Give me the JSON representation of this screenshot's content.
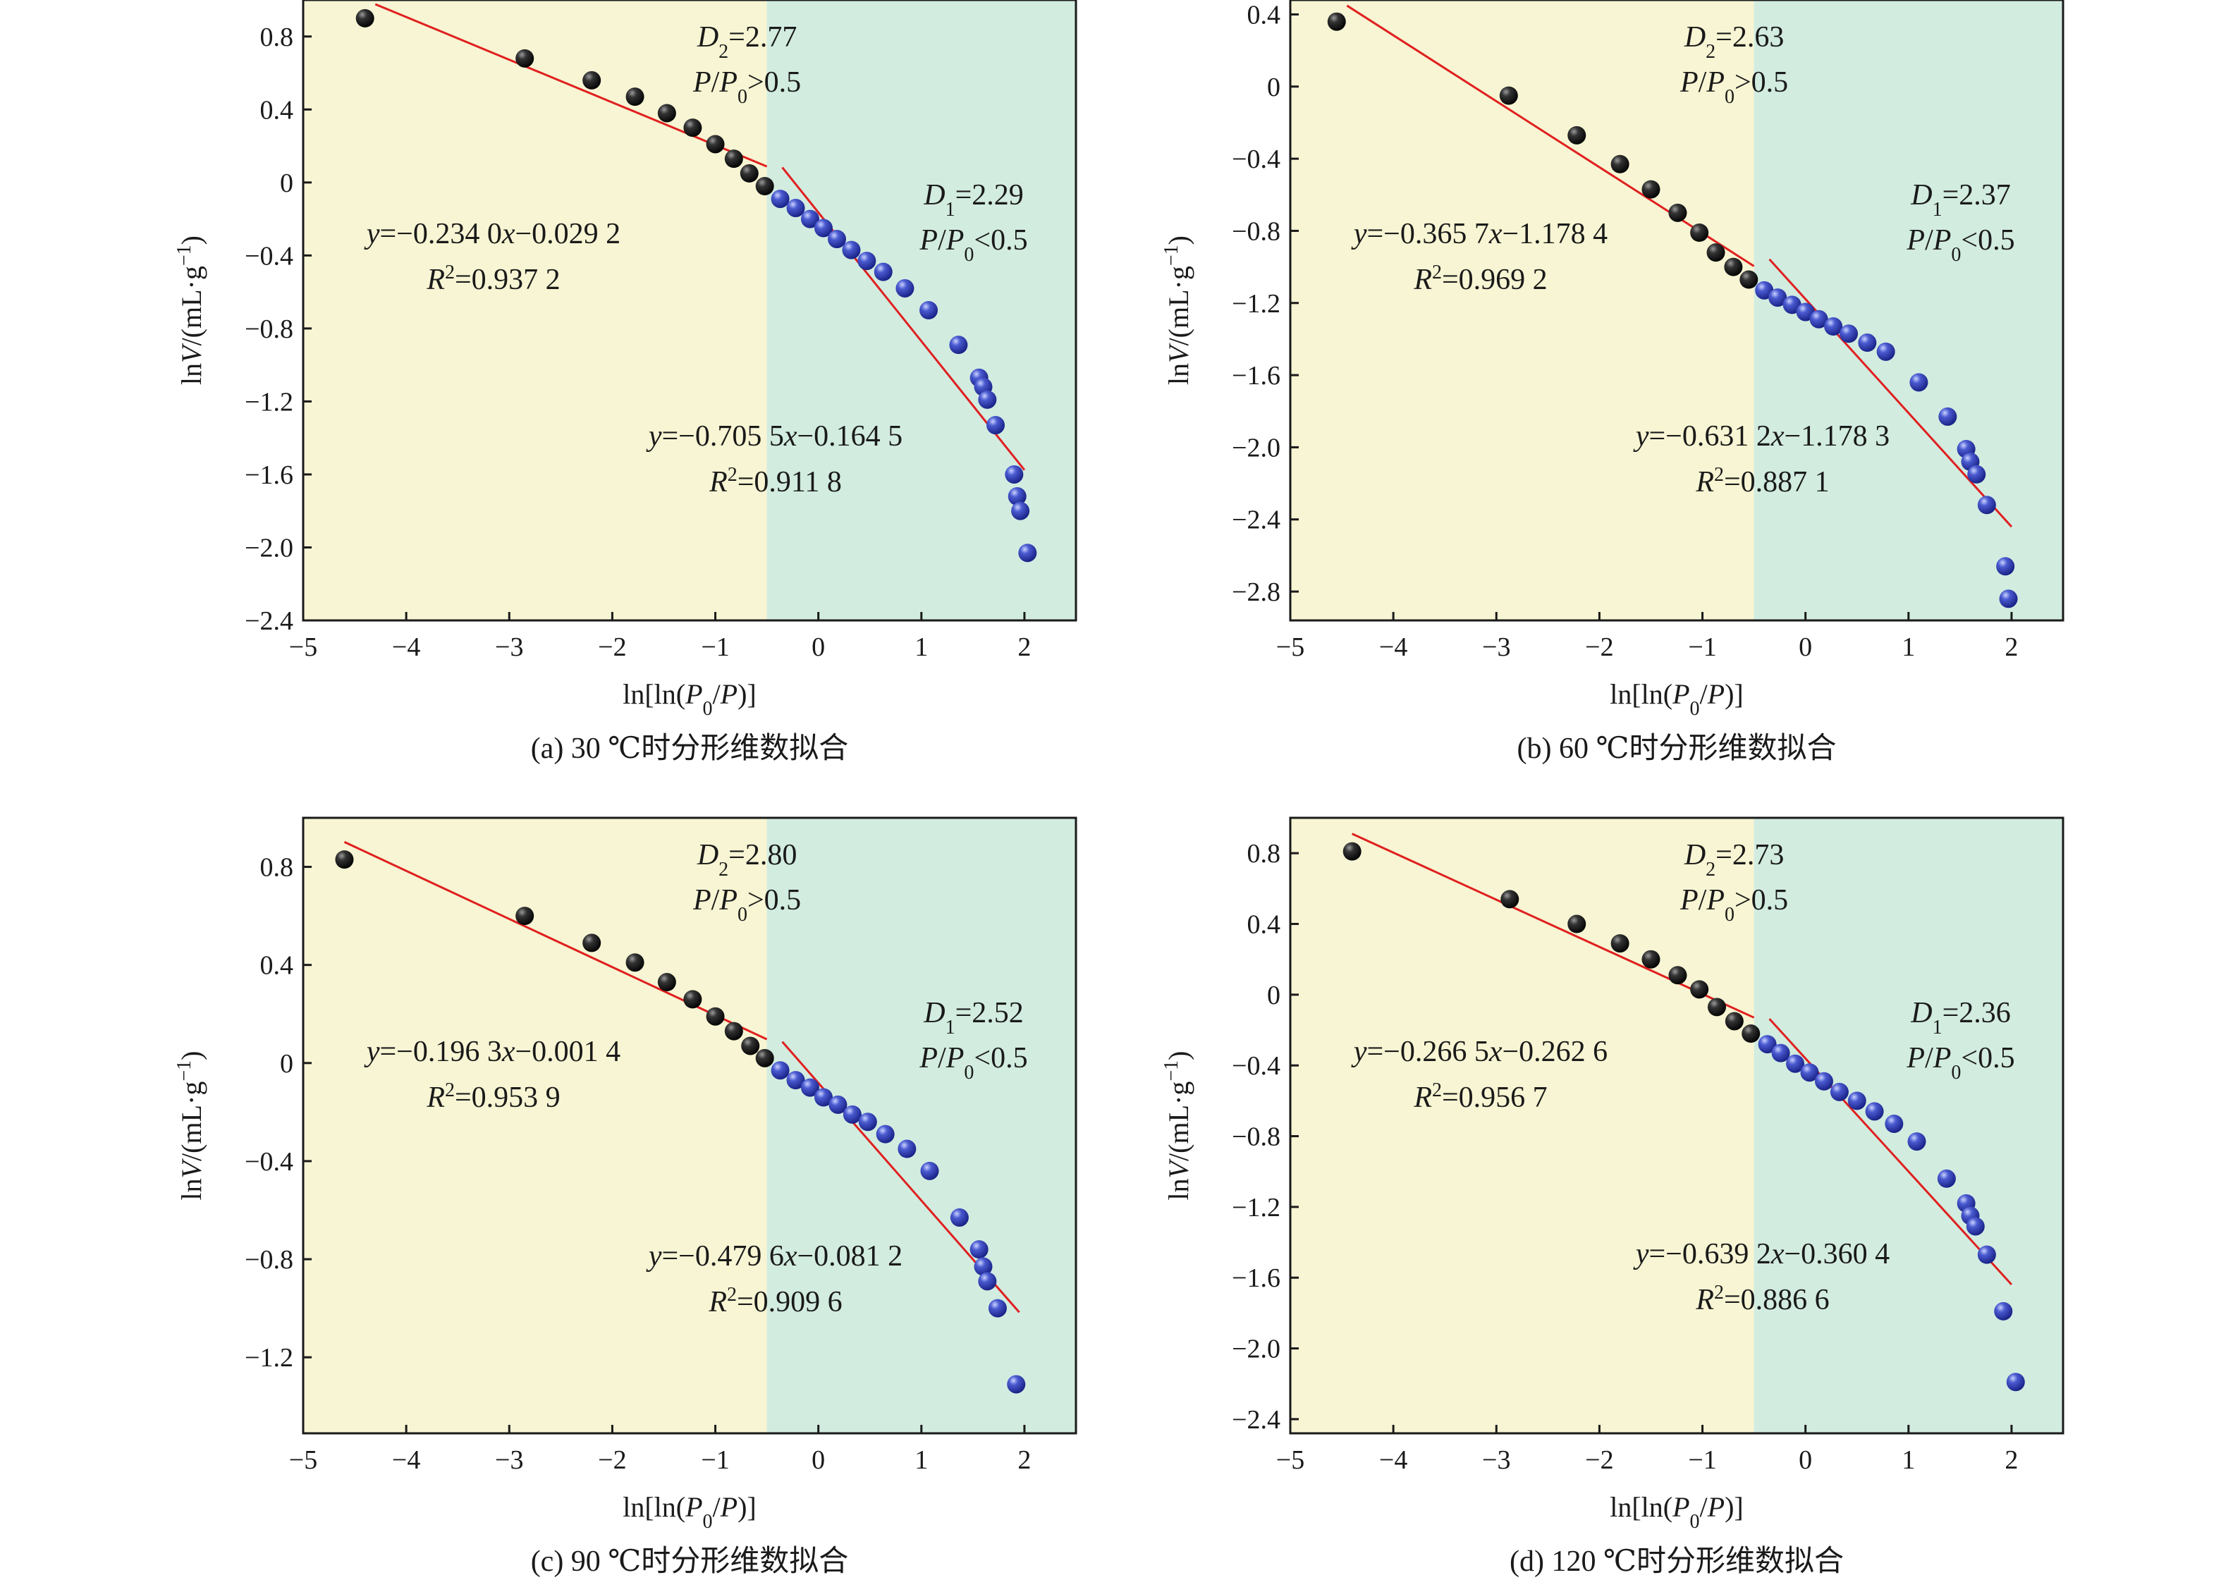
{
  "chart_data": [
    {
      "type": "scatter",
      "panel": "a",
      "caption": "(a) 30 ℃时分形维数拟合",
      "xlabel": "ln[ln(P0/P)]",
      "ylabel": "lnV/(mL·g−1)",
      "xlim": [
        -5,
        2.5
      ],
      "ylim": [
        -2.4,
        1.0
      ],
      "xticks": [
        -5,
        -4,
        -3,
        -2,
        -1,
        0,
        1,
        2
      ],
      "yticks": [
        0.8,
        0.4,
        0,
        -0.4,
        -0.8,
        -1.2,
        -1.6,
        -2.0,
        -2.4
      ],
      "xtick_labels": [
        "−5",
        "−4",
        "−3",
        "−2",
        "−1",
        "0",
        "1",
        "2"
      ],
      "ytick_labels": [
        "0.8",
        "0.4",
        "0",
        "−0.4",
        "−0.8",
        "−1.2",
        "−1.6",
        "−2.0",
        "−2.4"
      ],
      "boundary_x": -0.5,
      "region_colors": {
        "left": "#f7f5d3",
        "right": "#d2ece0"
      },
      "series": [
        {
          "region": "P/P0>0.5",
          "color": "#1c1c1c",
          "x": [
            -4.4,
            -2.85,
            -2.2,
            -1.78,
            -1.47,
            -1.22,
            -1.0,
            -0.82,
            -0.67,
            -0.52
          ],
          "y": [
            0.9,
            0.68,
            0.56,
            0.47,
            0.38,
            0.3,
            0.21,
            0.13,
            0.05,
            -0.02
          ]
        },
        {
          "region": "P/P0<0.5",
          "color": "#3a48b8",
          "x": [
            -0.37,
            -0.22,
            -0.08,
            0.05,
            0.18,
            0.32,
            0.47,
            0.63,
            0.84,
            1.07,
            1.36,
            1.56,
            1.6,
            1.64,
            1.72,
            1.9,
            1.93,
            1.96,
            2.03
          ],
          "y": [
            -0.09,
            -0.14,
            -0.2,
            -0.25,
            -0.31,
            -0.37,
            -0.43,
            -0.49,
            -0.58,
            -0.7,
            -0.89,
            -1.07,
            -1.12,
            -1.19,
            -1.33,
            -1.6,
            -1.72,
            -1.8,
            -2.03
          ]
        }
      ],
      "fit_lines": [
        {
          "x": [
            -4.3,
            -0.5
          ],
          "slope": -0.234,
          "intercept": -0.0292,
          "equation": "y=−0.234 0x−0.029 2",
          "r2": "R²=0.937 2"
        },
        {
          "x": [
            -0.35,
            2.0
          ],
          "slope": -0.7055,
          "intercept": -0.1645,
          "equation": "y=−0.705 5x−0.164 5",
          "r2": "R²=0.911 8"
        }
      ],
      "d_labels": {
        "d2": "D2=2.77",
        "d2_cond": "P/P0>0.5",
        "d1": "D1=2.29",
        "d1_cond": "P/P0<0.5"
      }
    },
    {
      "type": "scatter",
      "panel": "b",
      "caption": "(b) 60 ℃时分形维数拟合",
      "xlabel": "ln[ln(P0/P)]",
      "ylabel": "lnV/(mL·g−1)",
      "xlim": [
        -5,
        2.5
      ],
      "ylim": [
        -2.96,
        0.48
      ],
      "xticks": [
        -5,
        -4,
        -3,
        -2,
        -1,
        0,
        1,
        2
      ],
      "yticks": [
        0.4,
        0,
        -0.4,
        -0.8,
        -1.2,
        -1.6,
        -2.0,
        -2.4,
        -2.8
      ],
      "xtick_labels": [
        "−5",
        "−4",
        "−3",
        "−2",
        "−1",
        "0",
        "1",
        "2"
      ],
      "ytick_labels": [
        "0.4",
        "0",
        "−0.4",
        "−0.8",
        "−1.2",
        "−1.6",
        "−2.0",
        "−2.4",
        "−2.8"
      ],
      "boundary_x": -0.5,
      "region_colors": {
        "left": "#f7f5d3",
        "right": "#d2ece0"
      },
      "series": [
        {
          "region": "P/P0>0.5",
          "color": "#1c1c1c",
          "x": [
            -4.55,
            -2.88,
            -2.22,
            -1.8,
            -1.5,
            -1.24,
            -1.03,
            -0.87,
            -0.7,
            -0.55
          ],
          "y": [
            0.36,
            -0.05,
            -0.27,
            -0.43,
            -0.57,
            -0.7,
            -0.81,
            -0.92,
            -1.0,
            -1.07
          ]
        },
        {
          "region": "P/P0<0.5",
          "color": "#3a48b8",
          "x": [
            -0.4,
            -0.27,
            -0.13,
            0.0,
            0.13,
            0.27,
            0.42,
            0.6,
            0.78,
            1.1,
            1.38,
            1.56,
            1.6,
            1.66,
            1.76,
            1.94,
            1.97
          ],
          "y": [
            -1.13,
            -1.17,
            -1.21,
            -1.25,
            -1.29,
            -1.33,
            -1.37,
            -1.42,
            -1.47,
            -1.64,
            -1.83,
            -2.01,
            -2.08,
            -2.15,
            -2.32,
            -2.66,
            -2.84
          ]
        }
      ],
      "fit_lines": [
        {
          "x": [
            -4.45,
            -0.5
          ],
          "slope": -0.3657,
          "intercept": -1.1784,
          "equation": "y=−0.365 7x−1.178 4",
          "r2": "R²=0.969 2"
        },
        {
          "x": [
            -0.35,
            2.0
          ],
          "slope": -0.6312,
          "intercept": -1.1783,
          "equation": "y=−0.631 2x−1.178 3",
          "r2": "R²=0.887 1"
        }
      ],
      "d_labels": {
        "d2": "D2=2.63",
        "d2_cond": "P/P0>0.5",
        "d1": "D1=2.37",
        "d1_cond": "P/P0<0.5"
      }
    },
    {
      "type": "scatter",
      "panel": "c",
      "caption": "(c) 90 ℃时分形维数拟合",
      "xlabel": "ln[ln(P0/P)]",
      "ylabel": "lnV/(mL·g−1)",
      "xlim": [
        -5,
        2.5
      ],
      "ylim": [
        -1.51,
        1.0
      ],
      "xticks": [
        -5,
        -4,
        -3,
        -2,
        -1,
        0,
        1,
        2
      ],
      "yticks": [
        0.8,
        0.4,
        0,
        -0.4,
        -0.8,
        -1.2
      ],
      "xtick_labels": [
        "−5",
        "−4",
        "−3",
        "−2",
        "−1",
        "0",
        "1",
        "2"
      ],
      "ytick_labels": [
        "0.8",
        "0.4",
        "0",
        "−0.4",
        "−0.8",
        "−1.2"
      ],
      "boundary_x": -0.5,
      "region_colors": {
        "left": "#f7f5d3",
        "right": "#d2ece0"
      },
      "series": [
        {
          "region": "P/P0>0.5",
          "color": "#1c1c1c",
          "x": [
            -4.6,
            -2.85,
            -2.2,
            -1.78,
            -1.47,
            -1.22,
            -1.0,
            -0.82,
            -0.66,
            -0.52
          ],
          "y": [
            0.83,
            0.6,
            0.49,
            0.41,
            0.33,
            0.26,
            0.19,
            0.13,
            0.07,
            0.02
          ]
        },
        {
          "region": "P/P0<0.5",
          "color": "#3a48b8",
          "x": [
            -0.37,
            -0.22,
            -0.08,
            0.05,
            0.19,
            0.33,
            0.48,
            0.65,
            0.86,
            1.08,
            1.37,
            1.56,
            1.6,
            1.64,
            1.74,
            1.92
          ],
          "y": [
            -0.03,
            -0.07,
            -0.1,
            -0.14,
            -0.17,
            -0.21,
            -0.24,
            -0.29,
            -0.35,
            -0.44,
            -0.63,
            -0.76,
            -0.83,
            -0.89,
            -1.0,
            -1.31
          ]
        }
      ],
      "fit_lines": [
        {
          "x": [
            -4.6,
            -0.5
          ],
          "slope": -0.1963,
          "intercept": -0.0014,
          "equation": "y=−0.196 3x−0.001 4",
          "r2": "R²=0.953 9"
        },
        {
          "x": [
            -0.35,
            1.95
          ],
          "slope": -0.4796,
          "intercept": -0.0812,
          "equation": "y=−0.479 6x−0.081 2",
          "r2": "R²=0.909 6"
        }
      ],
      "d_labels": {
        "d2": "D2=2.80",
        "d2_cond": "P/P0>0.5",
        "d1": "D1=2.52",
        "d1_cond": "P/P0<0.5"
      }
    },
    {
      "type": "scatter",
      "panel": "d",
      "caption": "(d) 120 ℃时分形维数拟合",
      "xlabel": "ln[ln(P0/P)]",
      "ylabel": "lnV/(mL·g−1)",
      "xlim": [
        -5,
        2.5
      ],
      "ylim": [
        -2.48,
        1.0
      ],
      "xticks": [
        -5,
        -4,
        -3,
        -2,
        -1,
        0,
        1,
        2
      ],
      "yticks": [
        0.8,
        0.4,
        0,
        -0.4,
        -0.8,
        -1.2,
        -1.6,
        -2.0,
        -2.4
      ],
      "xtick_labels": [
        "−5",
        "−4",
        "−3",
        "−2",
        "−1",
        "0",
        "1",
        "2"
      ],
      "ytick_labels": [
        "0.8",
        "0.4",
        "0",
        "−0.4",
        "−0.8",
        "−1.2",
        "−1.6",
        "−2.0",
        "−2.4"
      ],
      "boundary_x": -0.5,
      "region_colors": {
        "left": "#f7f5d3",
        "right": "#d2ece0"
      },
      "series": [
        {
          "region": "P/P0>0.5",
          "color": "#1c1c1c",
          "x": [
            -4.4,
            -2.87,
            -2.22,
            -1.8,
            -1.5,
            -1.24,
            -1.03,
            -0.86,
            -0.69,
            -0.53
          ],
          "y": [
            0.81,
            0.54,
            0.4,
            0.29,
            0.2,
            0.11,
            0.03,
            -0.07,
            -0.15,
            -0.22
          ]
        },
        {
          "region": "P/P0<0.5",
          "color": "#3a48b8",
          "x": [
            -0.37,
            -0.24,
            -0.1,
            0.04,
            0.18,
            0.33,
            0.5,
            0.67,
            0.86,
            1.08,
            1.37,
            1.56,
            1.6,
            1.65,
            1.76,
            1.92,
            2.04
          ],
          "y": [
            -0.28,
            -0.33,
            -0.39,
            -0.44,
            -0.49,
            -0.55,
            -0.6,
            -0.66,
            -0.73,
            -0.83,
            -1.04,
            -1.18,
            -1.25,
            -1.31,
            -1.47,
            -1.79,
            -2.19
          ]
        }
      ],
      "fit_lines": [
        {
          "x": [
            -4.4,
            -0.5
          ],
          "slope": -0.2665,
          "intercept": -0.2626,
          "equation": "y=−0.266 5x−0.262 6",
          "r2": "R²=0.956 7"
        },
        {
          "x": [
            -0.35,
            2.0
          ],
          "slope": -0.6392,
          "intercept": -0.3604,
          "equation": "y=−0.639 2x−0.360 4",
          "r2": "R²=0.886 6"
        }
      ],
      "d_labels": {
        "d2": "D2=2.73",
        "d2_cond": "P/P0>0.5",
        "d1": "D1=2.36",
        "d1_cond": "P/P0<0.5"
      }
    }
  ]
}
